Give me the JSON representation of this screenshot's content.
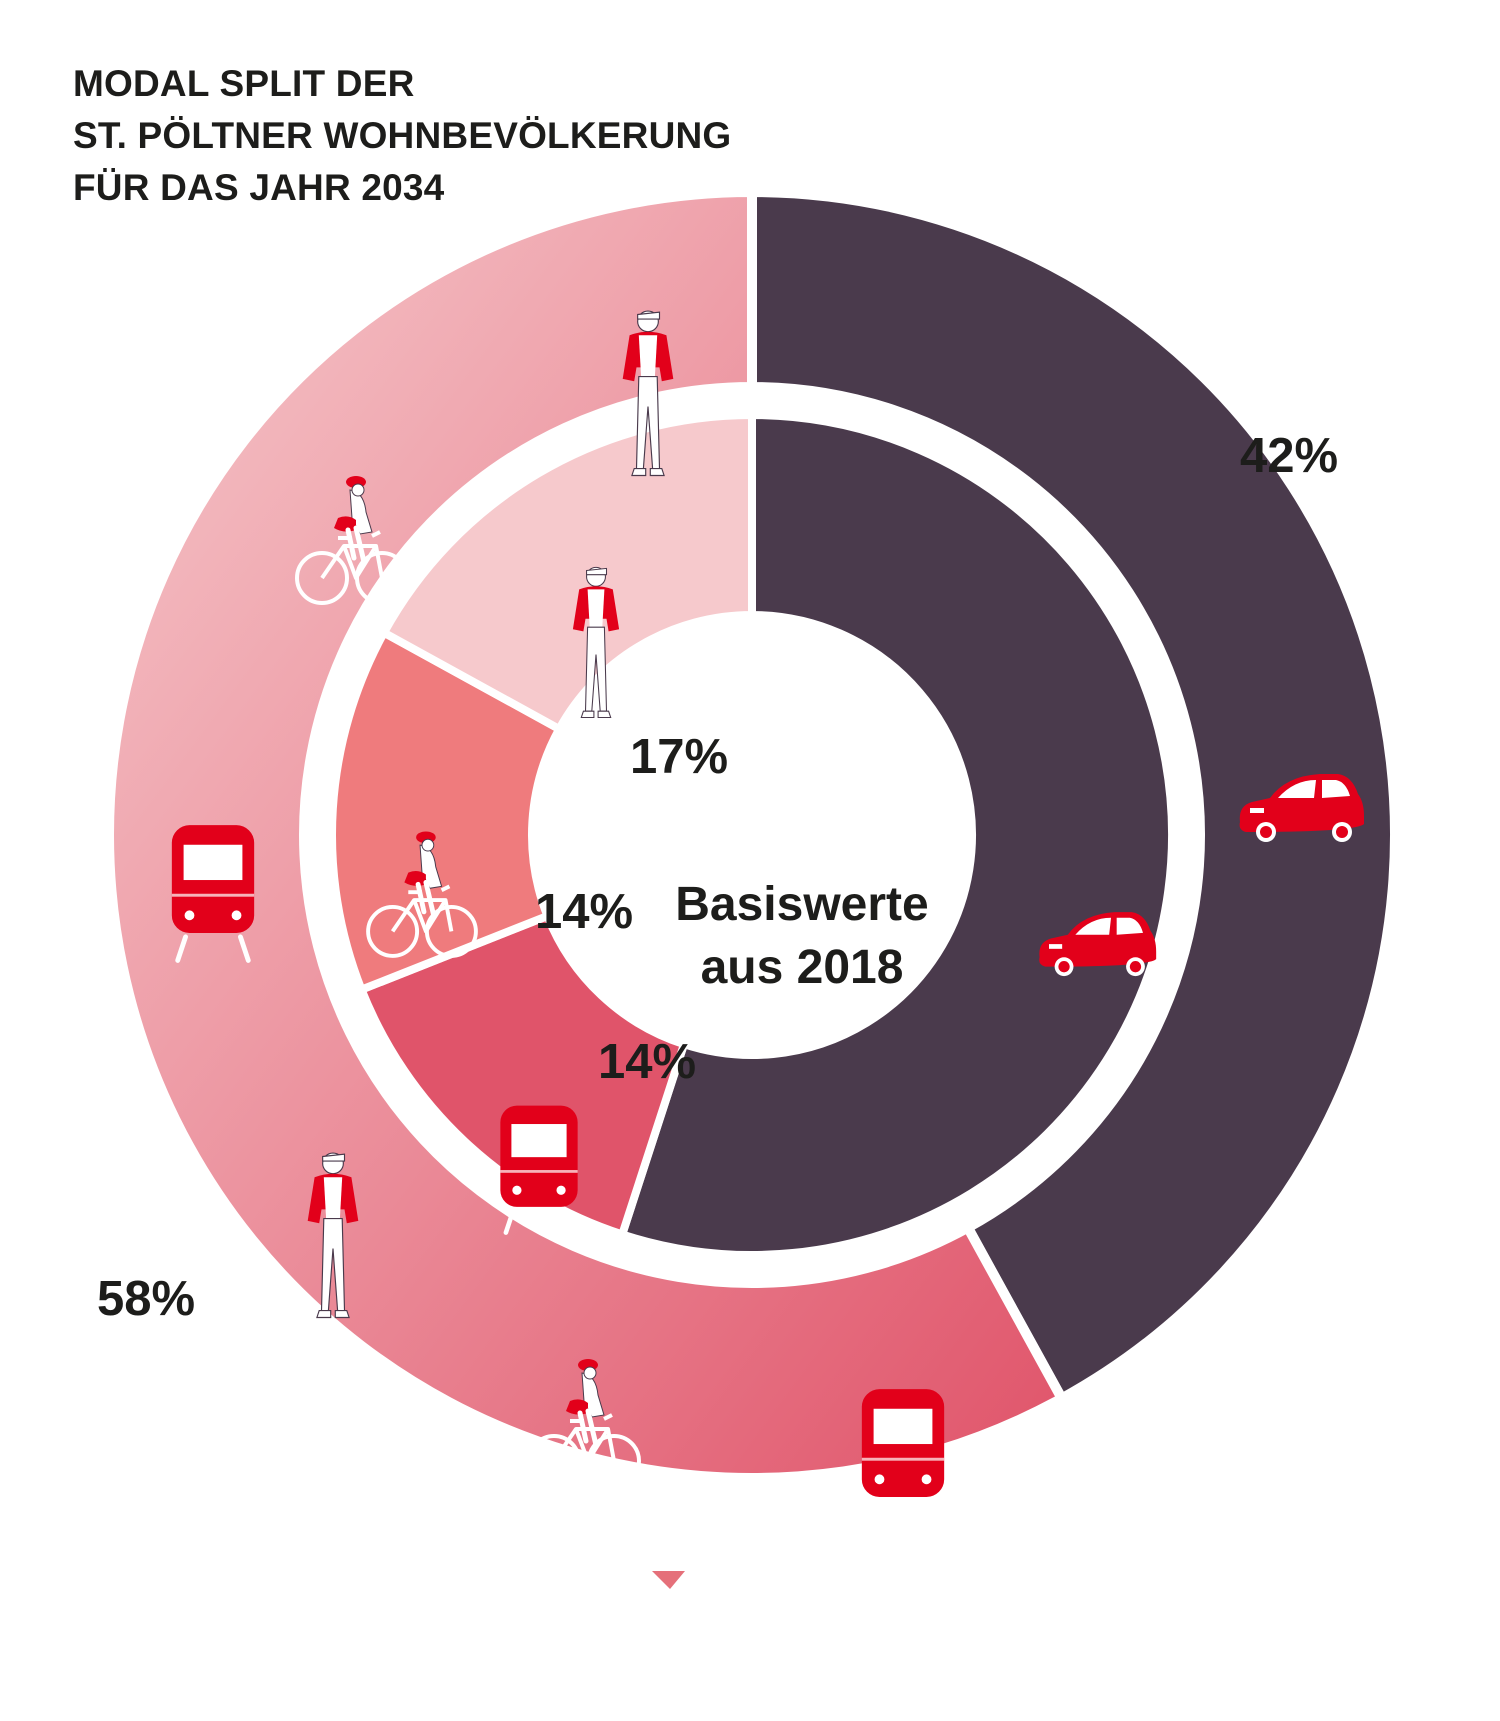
{
  "title_lines": [
    "MODAL SPLIT DER",
    "ST. PÖLTNER WOHNBEVÖLKERUNG",
    "FÜR DAS JAHR 2034"
  ],
  "chart_data": {
    "type": "pie",
    "rings": [
      {
        "ring": "outer",
        "segments": [
          {
            "label": "Auto",
            "icon": "car-icon",
            "value": 42,
            "display": "42%",
            "color": "#4a3a4c"
          },
          {
            "label": "Umweltverbund (Zu Fuß, Rad, Öffentlicher Verkehr)",
            "icons": [
              "train-icon",
              "cyclist-icon",
              "pedestrian-icon"
            ],
            "value": 58,
            "display": "58%",
            "gradient": [
              "#f6c9cc",
              "#e0546a"
            ]
          }
        ]
      },
      {
        "ring": "inner",
        "center_label": [
          "Basiswerte",
          "aus 2018"
        ],
        "segments": [
          {
            "label": "Auto",
            "icon": "car-icon",
            "value": 55,
            "display": "",
            "color": "#4a3a4c"
          },
          {
            "label": "Öffentlicher Verkehr",
            "icon": "train-icon",
            "value": 14,
            "display": "14%",
            "color": "#e0546a"
          },
          {
            "label": "Rad",
            "icon": "cyclist-icon",
            "value": 14,
            "display": "14%",
            "color": "#ef7b7d"
          },
          {
            "label": "Zu Fuß",
            "icon": "pedestrian-icon",
            "value": 17,
            "display": "17%",
            "color": "#f6c9cc"
          }
        ]
      }
    ]
  }
}
